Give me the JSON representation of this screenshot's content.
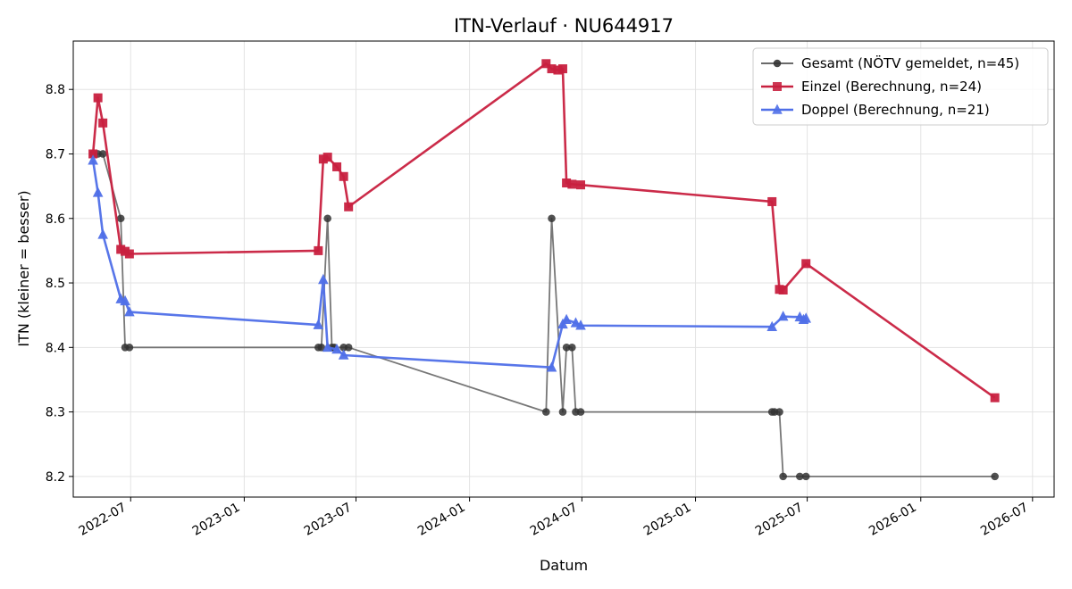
{
  "chart_data": {
    "type": "line",
    "title": "ITN-Verlauf · NU644917",
    "xlabel": "Datum",
    "ylabel": "ITN  (kleiner = besser)",
    "x_ticks": [
      "2022-07",
      "2023-01",
      "2023-07",
      "2024-01",
      "2024-07",
      "2025-01",
      "2025-07",
      "2026-01",
      "2026-07"
    ],
    "y_ticks": [
      "8.2",
      "8.3",
      "8.4",
      "8.5",
      "8.6",
      "8.7",
      "8.8"
    ],
    "xlim": [
      "2022-03-30",
      "2026-08-05"
    ],
    "ylim": [
      8.168,
      8.875
    ],
    "grid": true,
    "legend_position": "top-right",
    "series": [
      {
        "name": "Gesamt (NÖTV gemeldet, n=45)",
        "color": "#555555",
        "marker": "circle",
        "points": [
          [
            "2022-05-01",
            8.7
          ],
          [
            "2022-05-09",
            8.7
          ],
          [
            "2022-05-17",
            8.7
          ],
          [
            "2022-06-15",
            8.6
          ],
          [
            "2022-06-22",
            8.4
          ],
          [
            "2022-06-29",
            8.4
          ],
          [
            "2023-05-01",
            8.4
          ],
          [
            "2023-05-06",
            8.4
          ],
          [
            "2023-05-16",
            8.6
          ],
          [
            "2023-05-23",
            8.4
          ],
          [
            "2023-05-27",
            8.4
          ],
          [
            "2023-06-11",
            8.4
          ],
          [
            "2023-06-19",
            8.4
          ],
          [
            "2024-05-04",
            8.3
          ],
          [
            "2024-05-13",
            8.6
          ],
          [
            "2024-05-31",
            8.3
          ],
          [
            "2024-06-06",
            8.4
          ],
          [
            "2024-06-15",
            8.4
          ],
          [
            "2024-06-21",
            8.3
          ],
          [
            "2024-06-29",
            8.3
          ],
          [
            "2025-05-05",
            8.3
          ],
          [
            "2025-05-09",
            8.3
          ],
          [
            "2025-05-17",
            8.3
          ],
          [
            "2025-05-23",
            8.2
          ],
          [
            "2025-06-19",
            8.2
          ],
          [
            "2025-06-29",
            8.2
          ],
          [
            "2026-05-01",
            8.2
          ]
        ]
      },
      {
        "name": "Einzel (Berechnung, n=24)",
        "color": "#c8203f",
        "marker": "square",
        "points": [
          [
            "2022-05-01",
            8.7
          ],
          [
            "2022-05-09",
            8.787
          ],
          [
            "2022-05-17",
            8.748
          ],
          [
            "2022-06-15",
            8.552
          ],
          [
            "2022-06-22",
            8.549
          ],
          [
            "2022-06-29",
            8.545
          ],
          [
            "2023-05-01",
            8.55
          ],
          [
            "2023-05-09",
            8.692
          ],
          [
            "2023-05-16",
            8.695
          ],
          [
            "2023-05-31",
            8.68
          ],
          [
            "2023-06-11",
            8.665
          ],
          [
            "2023-06-19",
            8.618
          ],
          [
            "2024-05-04",
            8.84
          ],
          [
            "2024-05-13",
            8.832
          ],
          [
            "2024-05-23",
            8.83
          ],
          [
            "2024-05-31",
            8.832
          ],
          [
            "2024-06-06",
            8.655
          ],
          [
            "2024-06-15",
            8.653
          ],
          [
            "2024-06-29",
            8.652
          ],
          [
            "2025-05-05",
            8.626
          ],
          [
            "2025-05-17",
            8.49
          ],
          [
            "2025-05-23",
            8.489
          ],
          [
            "2025-06-29",
            8.53
          ],
          [
            "2026-05-01",
            8.322
          ]
        ]
      },
      {
        "name": "Doppel (Berechnung, n=21)",
        "color": "#4f6fe8",
        "marker": "triangle",
        "points": [
          [
            "2022-05-01",
            8.69
          ],
          [
            "2022-05-09",
            8.64
          ],
          [
            "2022-05-17",
            8.575
          ],
          [
            "2022-06-15",
            8.475
          ],
          [
            "2022-06-22",
            8.472
          ],
          [
            "2022-06-29",
            8.455
          ],
          [
            "2023-05-01",
            8.435
          ],
          [
            "2023-05-09",
            8.505
          ],
          [
            "2023-05-16",
            8.4
          ],
          [
            "2023-05-31",
            8.397
          ],
          [
            "2023-06-11",
            8.388
          ],
          [
            "2024-05-13",
            8.369
          ],
          [
            "2024-05-31",
            8.436
          ],
          [
            "2024-06-06",
            8.443
          ],
          [
            "2024-06-21",
            8.438
          ],
          [
            "2024-06-29",
            8.434
          ],
          [
            "2025-05-05",
            8.432
          ],
          [
            "2025-05-23",
            8.448
          ],
          [
            "2025-06-19",
            8.447
          ],
          [
            "2025-06-29",
            8.445
          ],
          [
            "2025-06-25",
            8.443
          ]
        ]
      }
    ]
  }
}
